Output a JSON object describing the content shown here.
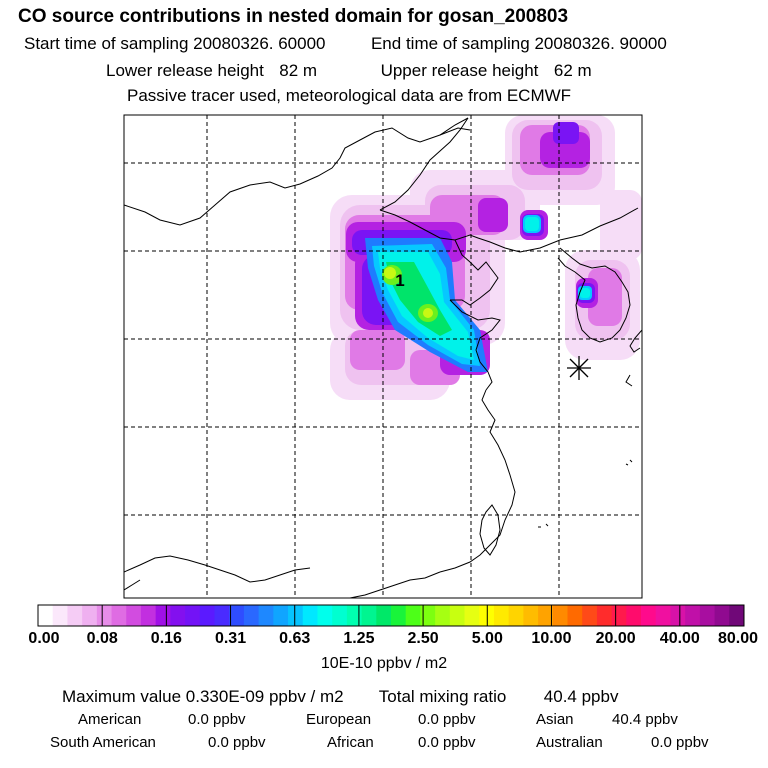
{
  "title": "CO  source contributions in nested domain for gosan_200803",
  "sampling": {
    "start_label": "Start time of sampling",
    "start_value": "20080326. 60000",
    "end_label": "End time of sampling",
    "end_value": "20080326. 90000"
  },
  "release": {
    "lower_label": "Lower release height",
    "lower_value": "82 m",
    "upper_label": "Upper release height",
    "upper_value": "62 m"
  },
  "note": "Passive tracer used, meteorological data are from ECMWF",
  "map": {
    "marker_label": "1",
    "receptor_symbol": "receptor-star"
  },
  "colorbar": {
    "ticks": [
      "0.00",
      "0.08",
      "0.16",
      "0.31",
      "0.63",
      "1.25",
      "2.50",
      "5.00",
      "10.00",
      "20.00",
      "40.00",
      "80.00"
    ],
    "unit": "10E-10 ppbv / m2",
    "colors": [
      "#ffffff",
      "#fbe8fb",
      "#f5ccf5",
      "#efb0f0",
      "#e78de9",
      "#df6ce3",
      "#d24ce0",
      "#c22fe0",
      "#a010e6",
      "#8310ef",
      "#7313f6",
      "#5b1aff",
      "#4a2bff",
      "#2f4dff",
      "#2a68ff",
      "#1e88ff",
      "#10a5ff",
      "#06c4ff",
      "#00e8ff",
      "#00ffec",
      "#00ffd0",
      "#00ffb0",
      "#00f590",
      "#00e868",
      "#19f43a",
      "#4dff18",
      "#7dff10",
      "#a6ff12",
      "#c8ff10",
      "#e6ff12",
      "#ffff00",
      "#ffea00",
      "#ffd400",
      "#ffbc00",
      "#ffa300",
      "#ff8a00",
      "#ff6a00",
      "#ff4a18",
      "#ff2c2c",
      "#ff1a4c",
      "#ff0c6c",
      "#ff0a8c",
      "#f010a0",
      "#d812a8",
      "#c010a8",
      "#a80ea0",
      "#900a90",
      "#700878"
    ]
  },
  "summary": {
    "max_label": "Maximum value",
    "max_value": "0.330E-09 ppbv / m2",
    "total_label": "Total mixing ratio",
    "total_value": "40.4 ppbv",
    "regions": [
      {
        "name": "American",
        "value": "0.0 ppbv"
      },
      {
        "name": "European",
        "value": "0.0 ppbv"
      },
      {
        "name": "Asian",
        "value": "40.4 ppbv"
      },
      {
        "name": "South American",
        "value": "0.0 ppbv"
      },
      {
        "name": "African",
        "value": "0.0 ppbv"
      },
      {
        "name": "Australian",
        "value": "0.0 ppbv"
      }
    ]
  }
}
